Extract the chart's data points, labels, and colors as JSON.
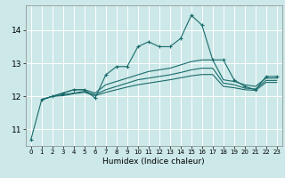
{
  "xlabel": "Humidex (Indice chaleur)",
  "bg_color": "#cce8e8",
  "grid_color": "#ffffff",
  "line_color": "#1a6b6b",
  "xlim": [
    -0.5,
    23.5
  ],
  "ylim": [
    10.5,
    14.75
  ],
  "yticks": [
    11,
    12,
    13,
    14
  ],
  "xticks": [
    0,
    1,
    2,
    3,
    4,
    5,
    6,
    7,
    8,
    9,
    10,
    11,
    12,
    13,
    14,
    15,
    16,
    17,
    18,
    19,
    20,
    21,
    22,
    23
  ],
  "lines": [
    {
      "x": [
        0,
        1,
        2,
        3,
        4,
        5,
        6,
        7,
        8,
        9,
        10,
        11,
        12,
        13,
        14,
        15,
        16,
        17,
        18,
        19,
        20,
        21,
        22,
        23
      ],
      "y": [
        10.7,
        11.9,
        12.0,
        12.1,
        12.2,
        12.2,
        11.95,
        12.65,
        12.9,
        12.9,
        13.5,
        13.65,
        13.5,
        13.5,
        13.75,
        14.45,
        14.15,
        13.1,
        13.1,
        12.5,
        12.3,
        12.2,
        12.6,
        12.6
      ],
      "marker": true
    },
    {
      "x": [
        1,
        2,
        3,
        4,
        5,
        6,
        7,
        8,
        9,
        10,
        11,
        12,
        13,
        14,
        15,
        16,
        17,
        18,
        19,
        20,
        21,
        22,
        23
      ],
      "y": [
        11.9,
        12.0,
        12.1,
        12.2,
        12.2,
        12.1,
        12.35,
        12.45,
        12.55,
        12.65,
        12.75,
        12.8,
        12.85,
        12.95,
        13.05,
        13.1,
        13.1,
        12.5,
        12.45,
        12.35,
        12.3,
        12.55,
        12.55
      ],
      "marker": false
    },
    {
      "x": [
        1,
        2,
        3,
        4,
        5,
        6,
        7,
        8,
        9,
        10,
        11,
        12,
        13,
        14,
        15,
        16,
        17,
        18,
        19,
        20,
        21,
        22,
        23
      ],
      "y": [
        11.9,
        12.0,
        12.05,
        12.1,
        12.15,
        12.05,
        12.2,
        12.3,
        12.4,
        12.5,
        12.55,
        12.6,
        12.65,
        12.72,
        12.8,
        12.85,
        12.85,
        12.4,
        12.35,
        12.25,
        12.22,
        12.48,
        12.48
      ],
      "marker": false
    },
    {
      "x": [
        1,
        2,
        3,
        4,
        5,
        6,
        7,
        8,
        9,
        10,
        11,
        12,
        13,
        14,
        15,
        16,
        17,
        18,
        19,
        20,
        21,
        22,
        23
      ],
      "y": [
        11.9,
        12.0,
        12.02,
        12.08,
        12.12,
        12.02,
        12.12,
        12.2,
        12.28,
        12.35,
        12.4,
        12.45,
        12.5,
        12.56,
        12.62,
        12.66,
        12.66,
        12.3,
        12.26,
        12.2,
        12.18,
        12.42,
        12.42
      ],
      "marker": false
    }
  ]
}
